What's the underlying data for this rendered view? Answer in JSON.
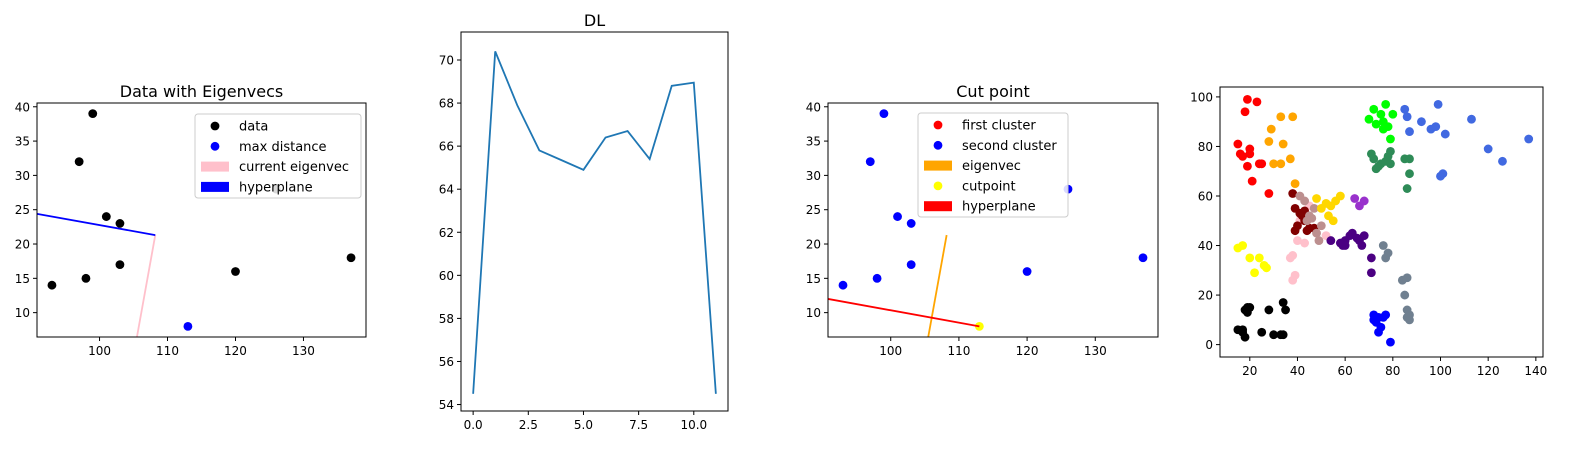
{
  "chart_data": [
    {
      "type": "scatter",
      "title": "Data with Eigenvecs",
      "xlim": [
        90.8,
        139.2
      ],
      "ylim": [
        6.45,
        40.55
      ],
      "xticks": [
        100,
        110,
        120,
        130
      ],
      "yticks": [
        10,
        15,
        20,
        25,
        30,
        35,
        40
      ],
      "legend_position": "upper right",
      "series": [
        {
          "name": "data",
          "kind": "points",
          "color": "#000000",
          "points": [
            [
              93,
              14
            ],
            [
              97,
              32
            ],
            [
              98,
              15
            ],
            [
              99,
              39
            ],
            [
              101,
              24
            ],
            [
              103,
              23
            ],
            [
              103,
              17
            ],
            [
              120,
              16
            ],
            [
              126,
              28
            ],
            [
              137,
              18
            ]
          ]
        },
        {
          "name": "max distance",
          "kind": "points",
          "color": "#0000ff",
          "points": [
            [
              113,
              8
            ]
          ]
        },
        {
          "name": "current eigenvec",
          "kind": "line",
          "color": "#ffc0cb",
          "points": [
            [
              105.5,
              6.45
            ],
            [
              108.2,
              21.3
            ]
          ]
        },
        {
          "name": "hyperplane",
          "kind": "line",
          "color": "#0000ff",
          "points": [
            [
              90.8,
              24.4
            ],
            [
              108.2,
              21.3
            ]
          ]
        }
      ]
    },
    {
      "type": "line",
      "title": "DL",
      "xlim": [
        -0.55,
        11.55
      ],
      "ylim": [
        53.7,
        71.3
      ],
      "xticks": [
        0.0,
        2.5,
        5.0,
        7.5,
        10.0
      ],
      "xtick_labels": [
        "0.0",
        "2.5",
        "5.0",
        "7.5",
        "10.0"
      ],
      "yticks": [
        54,
        56,
        58,
        60,
        62,
        64,
        66,
        68,
        70
      ],
      "series": [
        {
          "color": "#1f77b4",
          "x": [
            0,
            1,
            2,
            3,
            4,
            5,
            6,
            7,
            8,
            9,
            10,
            11
          ],
          "y": [
            54.5,
            70.4,
            67.9,
            65.8,
            65.35,
            64.9,
            66.4,
            66.7,
            65.4,
            68.8,
            68.95,
            54.5
          ]
        }
      ]
    },
    {
      "type": "scatter",
      "title": "Cut point",
      "xlim": [
        90.8,
        139.2
      ],
      "ylim": [
        6.45,
        40.55
      ],
      "xticks": [
        100,
        110,
        120,
        130
      ],
      "yticks": [
        10,
        15,
        20,
        25,
        30,
        35,
        40
      ],
      "legend_position": "upper center",
      "series": [
        {
          "name": "first cluster",
          "kind": "points",
          "color": "#ff0000",
          "points": []
        },
        {
          "name": "second cluster",
          "kind": "points",
          "color": "#0000ff",
          "points": [
            [
              93,
              14
            ],
            [
              97,
              32
            ],
            [
              98,
              15
            ],
            [
              99,
              39
            ],
            [
              101,
              24
            ],
            [
              103,
              23
            ],
            [
              103,
              17
            ],
            [
              120,
              16
            ],
            [
              126,
              28
            ],
            [
              137,
              18
            ]
          ]
        },
        {
          "name": "eigenvec",
          "kind": "line",
          "color": "#ffa500",
          "points": [
            [
              105.5,
              6.45
            ],
            [
              108.2,
              21.3
            ]
          ]
        },
        {
          "name": "cutpoint",
          "kind": "points",
          "color": "#ffff00",
          "points": [
            [
              113,
              8
            ]
          ]
        },
        {
          "name": "hyperplane",
          "kind": "line",
          "color": "#ff0000",
          "points": [
            [
              90.8,
              12.0
            ],
            [
              113,
              8
            ]
          ]
        }
      ]
    },
    {
      "type": "scatter",
      "title": "",
      "xlim": [
        7.5,
        143
      ],
      "ylim": [
        -5,
        104
      ],
      "xticks": [
        20,
        40,
        60,
        80,
        100,
        120,
        140
      ],
      "yticks": [
        0,
        20,
        40,
        60,
        80,
        100
      ],
      "series": [
        {
          "color": "#ff0000",
          "points": [
            [
              15,
              81
            ],
            [
              16,
              77
            ],
            [
              17,
              76
            ],
            [
              18,
              94
            ],
            [
              19,
              99
            ],
            [
              20,
              79
            ],
            [
              20,
              77
            ],
            [
              19,
              72
            ],
            [
              21,
              66
            ],
            [
              23,
              98
            ],
            [
              24,
              73
            ],
            [
              25,
              73
            ],
            [
              28,
              61
            ]
          ]
        },
        {
          "color": "#ffa500",
          "points": [
            [
              28,
              82
            ],
            [
              29,
              87
            ],
            [
              30,
              73
            ],
            [
              33,
              92
            ],
            [
              34,
              81
            ],
            [
              33,
              73
            ],
            [
              37,
              75
            ],
            [
              38,
              92
            ],
            [
              39,
              65
            ]
          ]
        },
        {
          "color": "#00ff00",
          "points": [
            [
              70,
              91
            ],
            [
              72,
              95
            ],
            [
              73,
              89
            ],
            [
              75,
              93
            ],
            [
              76,
              87
            ],
            [
              77,
              97
            ],
            [
              78,
              88
            ],
            [
              80,
              93
            ],
            [
              79,
              83
            ],
            [
              76,
              90
            ]
          ]
        },
        {
          "color": "#2e8b57",
          "points": [
            [
              71,
              77
            ],
            [
              72,
              75
            ],
            [
              73,
              71
            ],
            [
              74,
              72
            ],
            [
              75,
              73
            ],
            [
              77,
              74
            ],
            [
              78,
              76
            ],
            [
              79,
              73
            ],
            [
              79,
              78
            ],
            [
              85,
              75
            ],
            [
              87,
              75
            ],
            [
              87,
              69
            ],
            [
              86,
              63
            ]
          ]
        },
        {
          "color": "#4169e1",
          "points": [
            [
              85,
              95
            ],
            [
              86,
              92
            ],
            [
              87,
              86
            ],
            [
              92,
              90
            ],
            [
              96,
              87
            ],
            [
              98,
              88
            ],
            [
              99,
              97
            ],
            [
              100,
              68
            ],
            [
              101,
              69
            ],
            [
              102,
              85
            ],
            [
              113,
              91
            ],
            [
              120,
              79
            ],
            [
              126,
              74
            ],
            [
              137,
              83
            ]
          ]
        },
        {
          "color": "#000000",
          "points": [
            [
              15,
              6
            ],
            [
              17,
              6
            ],
            [
              17,
              5
            ],
            [
              18,
              3
            ],
            [
              18,
              14
            ],
            [
              19,
              13
            ],
            [
              19,
              15
            ],
            [
              20,
              15
            ],
            [
              25,
              5
            ],
            [
              28,
              14
            ],
            [
              30,
              4
            ],
            [
              33,
              4
            ],
            [
              34,
              17
            ],
            [
              35,
              14
            ],
            [
              34,
              4
            ]
          ]
        },
        {
          "color": "#ffff00",
          "points": [
            [
              15,
              39
            ],
            [
              17,
              40
            ],
            [
              20,
              35
            ],
            [
              22,
              29
            ],
            [
              24,
              35
            ],
            [
              26,
              32
            ],
            [
              27,
              31
            ]
          ]
        },
        {
          "color": "#ffc0cb",
          "points": [
            [
              37,
              35
            ],
            [
              38,
              26
            ],
            [
              39,
              28
            ],
            [
              40,
              42
            ],
            [
              41,
              50
            ],
            [
              43,
              41
            ],
            [
              45,
              56
            ],
            [
              52,
              44
            ],
            [
              38,
              36
            ]
          ]
        },
        {
          "color": "#800000",
          "points": [
            [
              38,
              61
            ],
            [
              39,
              55
            ],
            [
              40,
              48
            ],
            [
              41,
              53
            ],
            [
              42,
              52
            ],
            [
              43,
              50
            ],
            [
              44,
              46
            ],
            [
              45,
              47
            ],
            [
              43,
              54
            ],
            [
              47,
              47
            ],
            [
              39,
              46
            ]
          ]
        },
        {
          "color": "#bc8f8f",
          "points": [
            [
              41,
              60
            ],
            [
              43,
              58
            ],
            [
              44,
              50
            ],
            [
              45,
              52
            ],
            [
              47,
              55
            ],
            [
              48,
              45
            ],
            [
              49,
              42
            ],
            [
              50,
              48
            ],
            [
              46,
              51
            ]
          ]
        },
        {
          "color": "#ffd700",
          "points": [
            [
              48,
              59
            ],
            [
              50,
              55
            ],
            [
              52,
              57
            ],
            [
              53,
              52
            ],
            [
              54,
              56
            ],
            [
              56,
              58
            ],
            [
              58,
              60
            ],
            [
              55,
              50
            ]
          ]
        },
        {
          "color": "#4b0082",
          "points": [
            [
              54,
              42
            ],
            [
              58,
              41
            ],
            [
              59,
              40
            ],
            [
              60,
              42
            ],
            [
              62,
              44
            ],
            [
              63,
              45
            ],
            [
              65,
              43
            ],
            [
              66,
              42
            ],
            [
              67,
              40
            ],
            [
              68,
              44
            ],
            [
              71,
              35
            ],
            [
              71,
              29
            ],
            [
              60,
              40
            ]
          ]
        },
        {
          "color": "#9932cc",
          "points": [
            [
              64,
              59
            ],
            [
              66,
              56
            ],
            [
              68,
              58
            ]
          ]
        },
        {
          "color": "#708090",
          "points": [
            [
              76,
              40
            ],
            [
              77,
              35
            ],
            [
              78,
              37
            ],
            [
              84,
              26
            ],
            [
              85,
              20
            ],
            [
              86,
              27
            ],
            [
              86,
              14
            ],
            [
              87,
              12
            ],
            [
              87,
              10
            ],
            [
              86,
              11
            ]
          ]
        },
        {
          "color": "#0000ff",
          "points": [
            [
              72,
              12
            ],
            [
              72,
              10
            ],
            [
              73,
              9
            ],
            [
              74,
              5
            ],
            [
              75,
              7
            ],
            [
              76,
              11
            ],
            [
              77,
              12
            ],
            [
              74,
              11
            ],
            [
              79,
              1
            ]
          ]
        }
      ]
    }
  ]
}
